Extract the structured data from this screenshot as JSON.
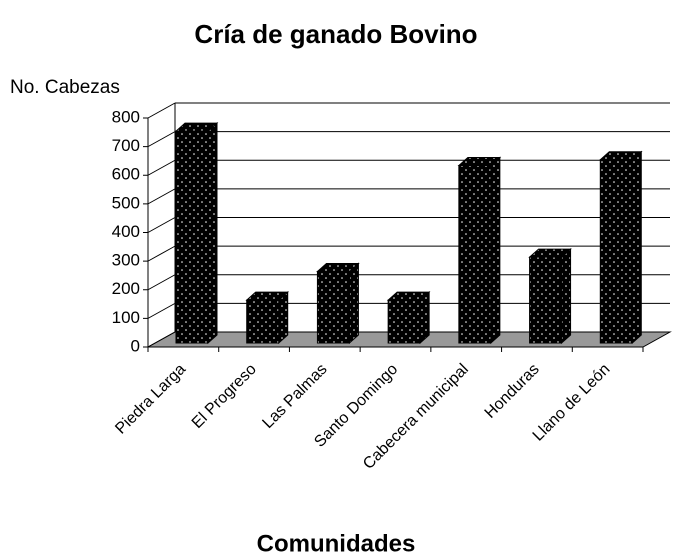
{
  "chart_data": {
    "type": "bar3d",
    "title": "Cría de ganado Bovino",
    "y_axis_label": "No. Cabezas",
    "x_axis_label": "Comunidades",
    "categories": [
      "Piedra Larga",
      "El Progreso",
      "Las Palmas",
      "Santo Domingo",
      "Cabecera municipal",
      "Honduras",
      "Llano de León"
    ],
    "values": [
      740,
      150,
      250,
      150,
      620,
      300,
      640
    ],
    "color": "#000000",
    "ylim": [
      0,
      800
    ],
    "yticks": [
      0,
      100,
      200,
      300,
      400,
      500,
      600,
      700,
      800
    ],
    "grid": true
  }
}
